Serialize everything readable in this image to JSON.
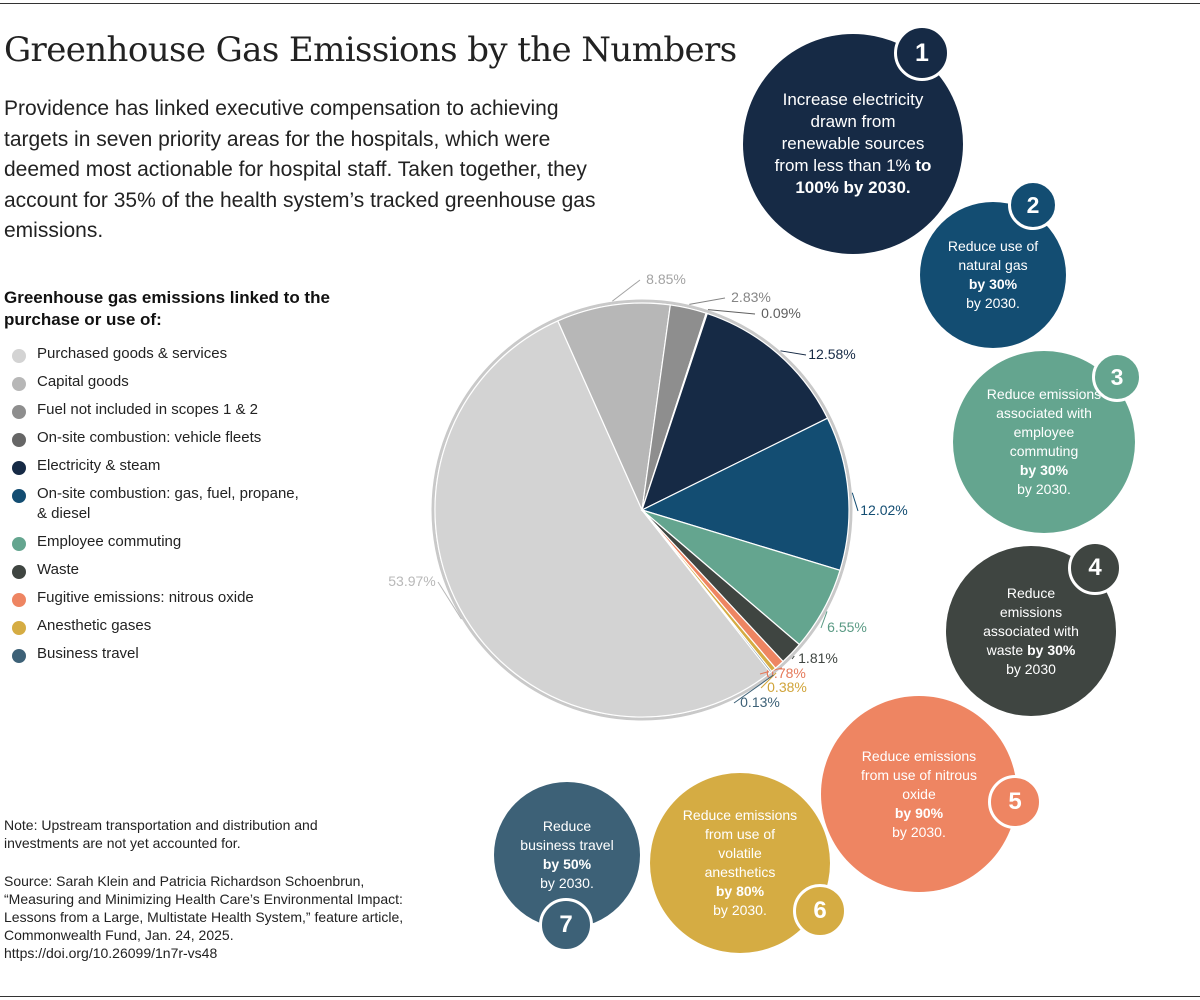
{
  "title": "Greenhouse Gas Emissions by the Numbers",
  "subtitle": "Providence has linked executive compensation to achieving targets in seven priority areas for the hospitals, which were deemed most actionable for hospital staff. Taken together, they account for 35% of the health system’s tracked greenhouse gas emissions.",
  "legend_title": "Greenhouse gas emissions linked to the purchase or use of:",
  "note": "Note: Upstream transportation and distribution and investments are not yet accounted for.",
  "source": "Source: Sarah Klein and Patricia Richardson Schoenbrun, “Measuring and Minimizing Health Care’s Environmental Impact: Lessons from a Large, Multistate Health System,” feature article, Commonwealth Fund, Jan. 24, 2025. https://doi.org/10.26099/1n7r-vs48",
  "chart_data": {
    "type": "pie",
    "unit": "%",
    "legend_position": "left",
    "slices": [
      {
        "name": "Purchased goods & services",
        "value": 53.97,
        "label": "53.97%",
        "color": "#d3d3d3",
        "label_color": "#b8b8b8"
      },
      {
        "name": "Capital goods",
        "value": 8.85,
        "label": "8.85%",
        "color": "#b7b7b7",
        "label_color": "#a3a3a3"
      },
      {
        "name": "Fuel not included in scopes 1 & 2",
        "value": 2.83,
        "label": "2.83%",
        "color": "#8e8e8e",
        "label_color": "#858585"
      },
      {
        "name": "On-site combustion: vehicle fleets",
        "value": 0.09,
        "label": "0.09%",
        "color": "#666666",
        "label_color": "#5f5f5f"
      },
      {
        "name": "Electricity & steam",
        "value": 12.58,
        "label": "12.58%",
        "color": "#162a45",
        "label_color": "#162a45"
      },
      {
        "name": "On-site combustion: gas, fuel, propane, & diesel",
        "value": 12.02,
        "label": "12.02%",
        "color": "#134d72",
        "label_color": "#134d72"
      },
      {
        "name": "Employee commuting",
        "value": 6.55,
        "label": "6.55%",
        "color": "#64a58f",
        "label_color": "#5a9a84"
      },
      {
        "name": "Waste",
        "value": 1.81,
        "label": "1.81%",
        "color": "#3f4541",
        "label_color": "#3f4541"
      },
      {
        "name": "Fugitive emissions: nitrous oxide",
        "value": 0.78,
        "label": "0.78%",
        "color": "#ee8562",
        "label_color": "#e5795a"
      },
      {
        "name": "Anesthetic gases",
        "value": 0.38,
        "label": "0.38%",
        "color": "#d5ac43",
        "label_color": "#d0a43a"
      },
      {
        "name": "Business travel",
        "value": 0.13,
        "label": "0.13%",
        "color": "#3d6177",
        "label_color": "#3d6177"
      }
    ]
  },
  "targets": [
    {
      "number": "1",
      "text": "Increase electricity drawn from renewable sources from less than 1%",
      "bold": "to 100% by 2030.",
      "after": "",
      "color": "#162a45"
    },
    {
      "number": "2",
      "text": "Reduce use of natural gas",
      "bold": "by 30%",
      "after": "by 2030.",
      "color": "#134d72"
    },
    {
      "number": "3",
      "text": "Reduce emissions associated with employee commuting",
      "bold": "by 30%",
      "after": "by 2030.",
      "color": "#64a58f"
    },
    {
      "number": "4",
      "text": "Reduce emissions associated with waste",
      "bold": "by 30%",
      "after": "by 2030",
      "color": "#3f4541"
    },
    {
      "number": "5",
      "text": "Reduce emissions from use of nitrous oxide",
      "bold": "by 90%",
      "after": "by 2030.",
      "color": "#ee8562"
    },
    {
      "number": "6",
      "text": "Reduce emissions from use of volatile anesthetics",
      "bold": "by 80%",
      "after": "by 2030.",
      "color": "#d5ac43"
    },
    {
      "number": "7",
      "text": "Reduce business travel",
      "bold": "by 50%",
      "after": "by 2030.",
      "color": "#3d6177"
    }
  ]
}
